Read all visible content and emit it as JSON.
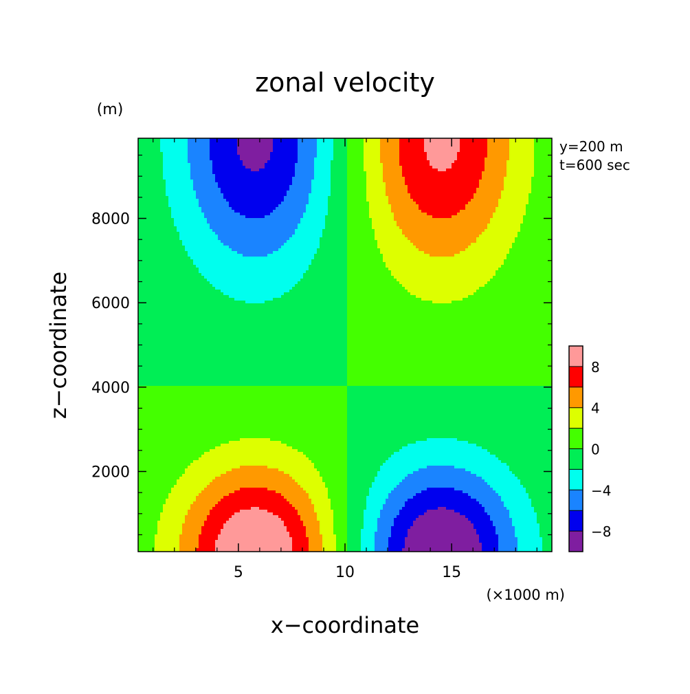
{
  "chart_data": {
    "type": "heatmap",
    "title": "zonal velocity",
    "xlabel": "x−coordinate",
    "ylabel": "z−coordinate",
    "x_unit": "(×1000 m)",
    "y_unit": "(m)",
    "annotations": [
      "y=200 m",
      "t=600 sec"
    ],
    "xlim": [
      0.3,
      19.7
    ],
    "ylim": [
      100,
      9900
    ],
    "x_ticks": [
      "5",
      "10",
      "15"
    ],
    "x_tick_values": [
      5,
      10,
      15
    ],
    "y_ticks": [
      "2000",
      "4000",
      "6000",
      "8000"
    ],
    "y_tick_values": [
      2000,
      4000,
      6000,
      8000
    ],
    "colorbar": {
      "levels": [
        -10,
        -8,
        -6,
        -4,
        -2,
        0,
        2,
        4,
        6,
        8,
        10
      ],
      "tick_labels": [
        "−8",
        "−4",
        "0",
        "4",
        "8"
      ],
      "tick_values": [
        -8,
        -4,
        0,
        4,
        8
      ],
      "colors": [
        "#7f1ea0",
        "#0000ee",
        "#1a84ff",
        "#00ffee",
        "#00ee55",
        "#44ff00",
        "#ddff00",
        "#ff9900",
        "#ff0000",
        "#ff9999"
      ]
    },
    "field": {
      "description_free": true,
      "left_x": 5.8,
      "right_x": 14.5,
      "deep_peak": 10.5,
      "upper_peak": 8.5,
      "sign_pattern": "upper-left negative, upper-right positive, lower-left positive, lower-right negative"
    }
  }
}
